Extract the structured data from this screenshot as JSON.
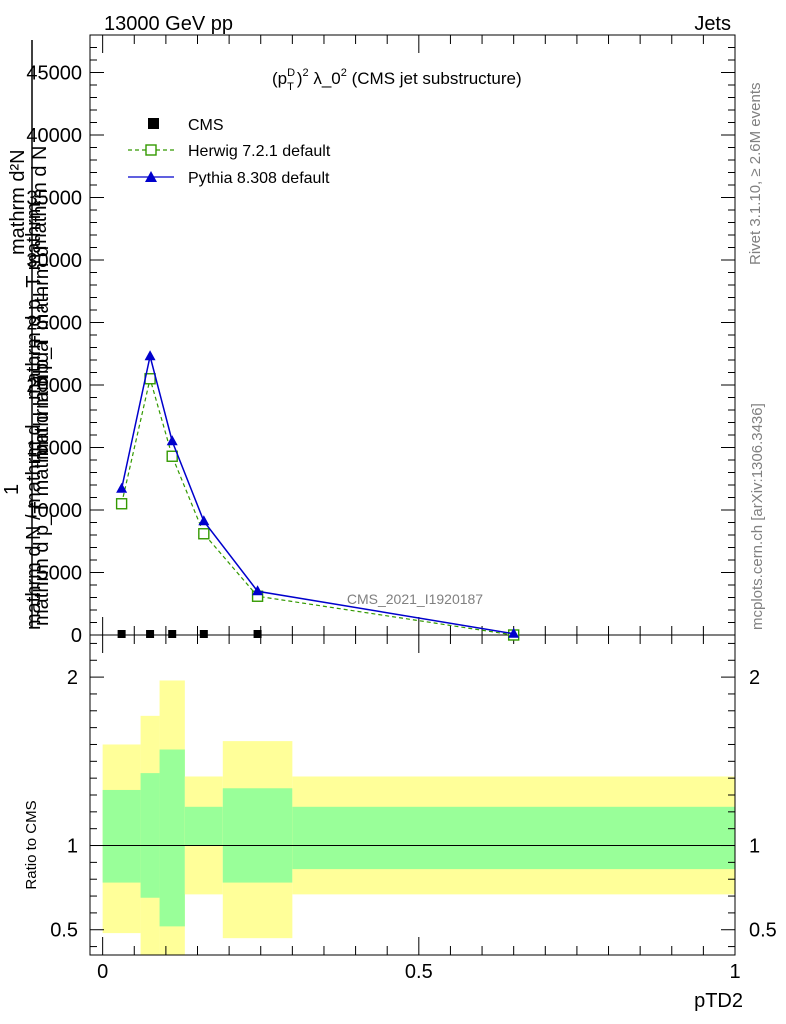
{
  "header": {
    "energy_label": "13000 GeV pp",
    "process_label": "Jets"
  },
  "side_labels": {
    "rivet_version": "Rivet 3.1.10, ≥ 2.6M events",
    "site": "mcplots.cern.ch [arXiv:1306.3436]"
  },
  "analysis_watermark": "CMS_2021_I1920187",
  "chart_data": [
    {
      "type": "line",
      "panel": "main",
      "title": "(p_T^D)^2 λ_0^2 (CMS jet substructure)",
      "title_parts": {
        "p": "(p",
        "sup1": "D",
        "sub1": "T",
        "close": ")",
        "sup2": "2",
        "rest": " λ_0",
        "sup3": "2",
        "tail": " (CMS jet substructure)"
      },
      "ylabel": {
        "numerator_prefix": "1",
        "numerator": "mathrm d²N",
        "denominator": "mathrm d p_T mathrm d lambda",
        "overlay_fragments": [
          "mathrm d N",
          "mathrm d p_T mathrm d",
          "mathrm d N / mathrm d",
          "mathrm d p_T mathrm"
        ]
      },
      "xlim": [
        -0.02,
        1.0
      ],
      "ylim": [
        0,
        48000
      ],
      "yticks": [
        0,
        5000,
        10000,
        15000,
        20000,
        25000,
        30000,
        35000,
        40000,
        45000
      ],
      "ytick_labels": [
        "0",
        "5000",
        "10000",
        "15000",
        "20000",
        "25000",
        "30000",
        "35000",
        "40000",
        "45000"
      ],
      "legend_position": "top-left",
      "series": [
        {
          "name": "CMS",
          "color": "#000000",
          "marker": "square-filled",
          "x": [
            0.03,
            0.075,
            0.11,
            0.16,
            0.245
          ],
          "y": [
            0,
            0,
            0,
            0,
            0
          ]
        },
        {
          "name": "Herwig 7.2.1 default",
          "color": "#339900",
          "marker": "square-open",
          "dash": true,
          "x": [
            0.03,
            0.075,
            0.11,
            0.16,
            0.245,
            0.65
          ],
          "y": [
            10500,
            20500,
            14300,
            8100,
            3100,
            0
          ]
        },
        {
          "name": "Pythia 8.308 default",
          "color": "#0000cc",
          "marker": "triangle-filled",
          "x": [
            0.03,
            0.075,
            0.11,
            0.16,
            0.245,
            0.65
          ],
          "y": [
            11700,
            22300,
            15500,
            9100,
            3500,
            100
          ]
        }
      ]
    },
    {
      "type": "area",
      "panel": "ratio",
      "ylabel": "Ratio to CMS",
      "xlabel": "pTD2",
      "xlim": [
        -0.02,
        1.0
      ],
      "ylim": [
        0.35,
        2.25
      ],
      "xticks": [
        0,
        0.5,
        1
      ],
      "xtick_labels": [
        "0",
        "0.5",
        "1"
      ],
      "yticks": [
        0.5,
        1,
        2
      ],
      "ytick_labels": [
        "0.5",
        "1",
        "2"
      ],
      "bands": [
        {
          "x0": 0.0,
          "x1": 0.06,
          "stat_low": 0.78,
          "stat_high": 1.33,
          "tot_low": 0.48,
          "tot_high": 1.6
        },
        {
          "x0": 0.06,
          "x1": 0.09,
          "stat_low": 0.69,
          "stat_high": 1.43,
          "tot_low": 0.33,
          "tot_high": 1.77
        },
        {
          "x0": 0.09,
          "x1": 0.13,
          "stat_low": 0.52,
          "stat_high": 1.57,
          "tot_low": 0.33,
          "tot_high": 1.98
        },
        {
          "x0": 0.13,
          "x1": 0.19,
          "stat_low": 1.0,
          "stat_high": 1.23,
          "tot_low": 0.71,
          "tot_high": 1.41
        },
        {
          "x0": 0.19,
          "x1": 0.3,
          "stat_low": 0.78,
          "stat_high": 1.34,
          "tot_low": 0.45,
          "tot_high": 1.62
        },
        {
          "x0": 0.3,
          "x1": 1.0,
          "stat_low": 0.86,
          "stat_high": 1.23,
          "tot_low": 0.71,
          "tot_high": 1.41
        }
      ],
      "reference": 1,
      "colors": {
        "stat": "#99ff99",
        "total": "#ffff99"
      }
    }
  ]
}
